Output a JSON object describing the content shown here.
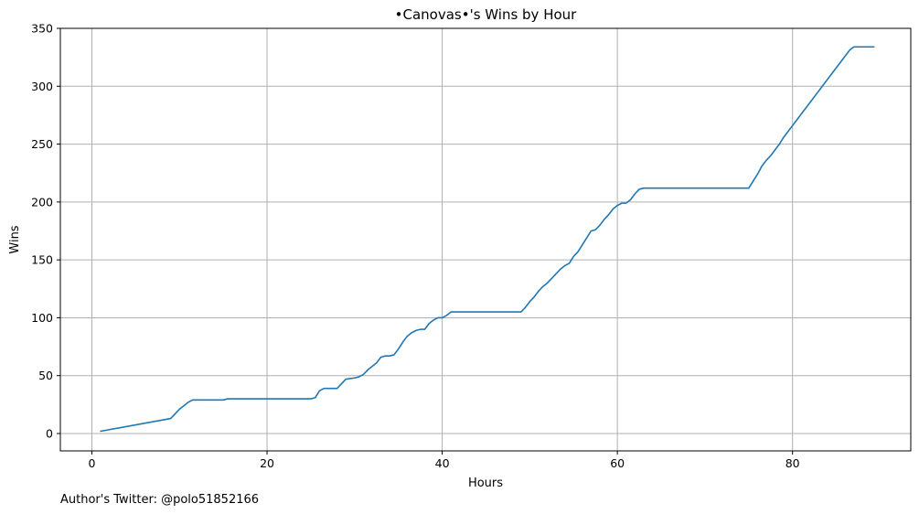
{
  "chart_data": {
    "type": "line",
    "title": "•Canovas•'s Wins by Hour",
    "xlabel": "Hours",
    "ylabel": "Wins",
    "xlim": [
      -3.6,
      93.5
    ],
    "ylim": [
      -15,
      350
    ],
    "xticks": [
      0,
      20,
      40,
      60,
      80
    ],
    "yticks": [
      0,
      50,
      100,
      150,
      200,
      250,
      300,
      350
    ],
    "grid": true,
    "series": [
      {
        "color": "#1f77b4",
        "x": [
          1,
          9,
          10,
          11,
          11.5,
          12,
          15,
          15.5,
          25,
          25.5,
          26,
          26.5,
          28,
          29,
          30,
          30.5,
          31,
          31.5,
          32,
          32.5,
          33,
          33.5,
          34,
          34.5,
          35,
          35.5,
          36,
          36.5,
          37,
          37.5,
          38,
          38.5,
          39,
          39.5,
          40,
          40.5,
          41,
          49,
          49.5,
          50,
          50.5,
          51,
          51.5,
          52,
          52.5,
          53,
          53.5,
          54,
          54.5,
          55,
          55.5,
          56,
          56.5,
          57,
          57.5,
          58,
          58.5,
          59,
          59.5,
          60,
          60.5,
          61,
          61.5,
          62,
          62.5,
          63,
          63.5,
          75,
          75.5,
          76,
          76.5,
          77,
          77.5,
          78,
          78.5,
          79,
          79.5,
          80,
          80.5,
          81,
          81.5,
          82,
          82.5,
          83,
          83.5,
          84,
          84.5,
          85,
          85.5,
          86,
          86.5,
          87,
          89.3
        ],
        "y": [
          2,
          13,
          21,
          27,
          29,
          29,
          29,
          30,
          30,
          31,
          37,
          39,
          39,
          47,
          48,
          49,
          51,
          55,
          58,
          61,
          66,
          67,
          67,
          68,
          73,
          79,
          84,
          87,
          89,
          90,
          90,
          95,
          98,
          100,
          100,
          102,
          105,
          105,
          109,
          114,
          118,
          123,
          127,
          130,
          134,
          138,
          142,
          145,
          147,
          153,
          157,
          163,
          169,
          175,
          176,
          180,
          185,
          189,
          194,
          197,
          199,
          199,
          202,
          207,
          211,
          212,
          212,
          212,
          218,
          224,
          231,
          236,
          240,
          245,
          250,
          256,
          261,
          266,
          271,
          276,
          281,
          286,
          291,
          296,
          301,
          306,
          311,
          316,
          321,
          326,
          331,
          334,
          334
        ]
      }
    ]
  },
  "footer": {
    "text": "Author's Twitter: @polo51852166"
  }
}
